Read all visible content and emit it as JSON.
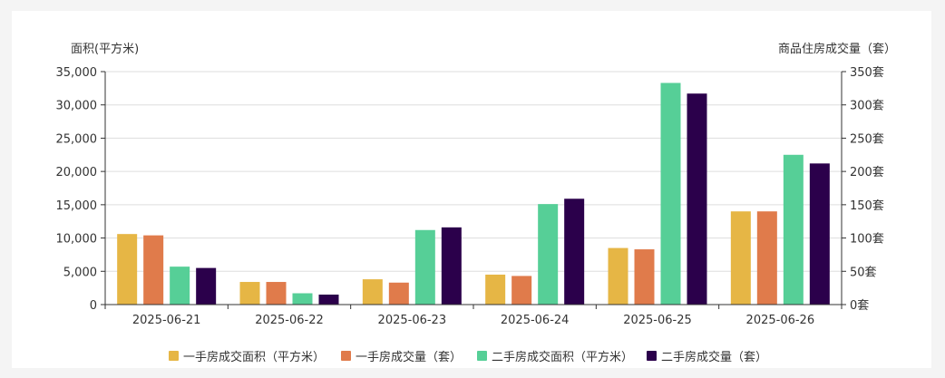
{
  "chart_data": {
    "type": "bar",
    "left_axis": {
      "title": "面积(平方米)",
      "ticks": [
        "35,000",
        "30,000",
        "25,000",
        "20,000",
        "15,000",
        "10,000",
        "5,000",
        "0"
      ],
      "ylim": [
        0,
        35000
      ]
    },
    "right_axis": {
      "title": "商品住房成交量（套）",
      "ticks": [
        "350套",
        "300套",
        "250套",
        "200套",
        "150套",
        "100套",
        "50套",
        "0套"
      ],
      "ylim": [
        0,
        350
      ]
    },
    "categories": [
      "2025-06-21",
      "2025-06-22",
      "2025-06-23",
      "2025-06-24",
      "2025-06-25",
      "2025-06-26"
    ],
    "series": [
      {
        "name": "一手房成交面积（平方米）",
        "axis": "left",
        "color": "#e6b645",
        "values": [
          10600,
          3400,
          3800,
          4500,
          8500,
          14000
        ]
      },
      {
        "name": "一手房成交量（套）",
        "axis": "right",
        "color": "#e07b4b",
        "values": [
          104,
          34,
          33,
          43,
          83,
          140
        ]
      },
      {
        "name": "二手房成交面积（平方米）",
        "axis": "left",
        "color": "#56cf97",
        "values": [
          5700,
          1700,
          11200,
          15100,
          33300,
          22500
        ]
      },
      {
        "name": "二手房成交量（套）",
        "axis": "right",
        "color": "#2b004b",
        "values": [
          55,
          15,
          116,
          159,
          317,
          212
        ]
      }
    ],
    "grid": true,
    "legend_position": "bottom"
  }
}
